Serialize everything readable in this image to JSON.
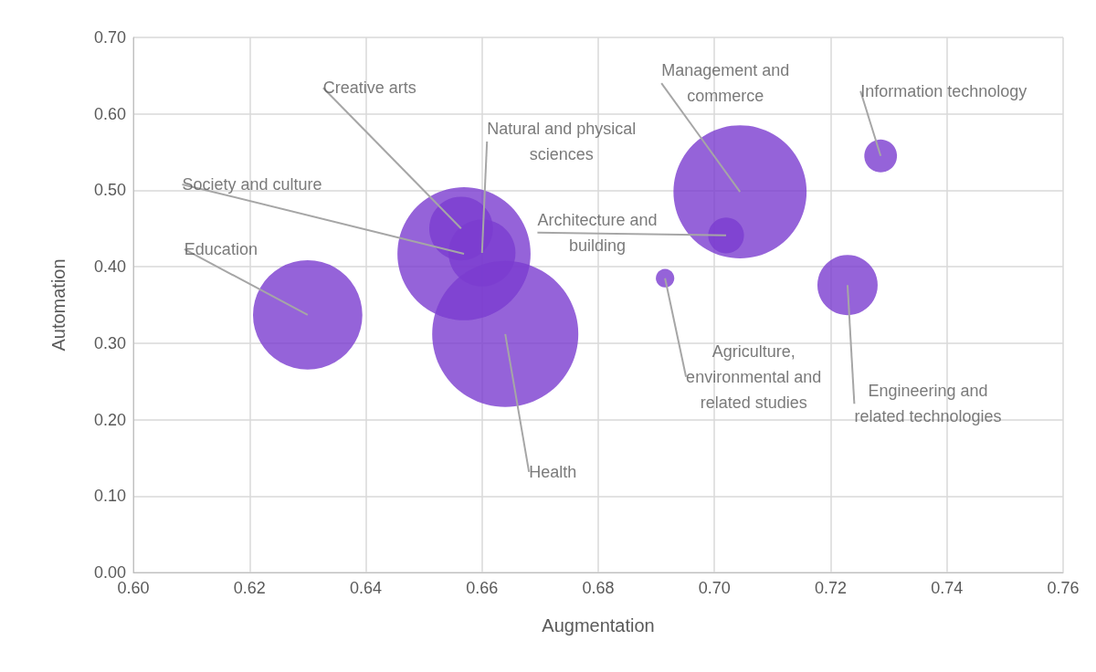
{
  "chart_data": {
    "type": "bubble",
    "xlabel": "Augmentation",
    "ylabel": "Automation",
    "x": [
      0.63,
      0.6569,
      0.6564,
      0.66,
      0.664,
      0.6915,
      0.702,
      0.7044,
      0.7286,
      0.7229
    ],
    "values": [
      0.337,
      0.417,
      0.45,
      0.418,
      0.312,
      0.385,
      0.441,
      0.498,
      0.545,
      0.376
    ],
    "sizes": [
      0.56,
      0.83,
      0.19,
      0.21,
      1,
      0.016,
      0.06,
      0.83,
      0.05,
      0.17
    ],
    "color": "#7a3ccf",
    "xlim": [
      0.6,
      0.76
    ],
    "xticks": [
      {
        "value": 0.6,
        "label": "0.60"
      },
      {
        "value": 0.62,
        "label": "0.62"
      },
      {
        "value": 0.64,
        "label": "0.64"
      },
      {
        "value": 0.66,
        "label": "0.66"
      },
      {
        "value": 0.68,
        "label": "0.68"
      },
      {
        "value": 0.7,
        "label": "0.70"
      },
      {
        "value": 0.72,
        "label": "0.72"
      },
      {
        "value": 0.74,
        "label": "0.74"
      },
      {
        "value": 0.76,
        "label": "0.76"
      }
    ],
    "ylim": [
      0,
      0.7
    ],
    "yticks": [
      {
        "value": 0,
        "label": "0.00"
      },
      {
        "value": 0.1,
        "label": "0.10"
      },
      {
        "value": 0.2,
        "label": "0.20"
      },
      {
        "value": 0.3,
        "label": "0.30"
      },
      {
        "value": 0.4,
        "label": "0.40"
      },
      {
        "value": 0.5,
        "label": "0.50"
      },
      {
        "value": 0.6,
        "label": "0.60"
      },
      {
        "value": 0.7,
        "label": "0.70"
      }
    ],
    "grid": true,
    "annotations": [
      {
        "text": "Education",
        "x": 0.63,
        "y": 0.337
      },
      {
        "text": "Society and culture",
        "x": 0.6569,
        "y": 0.417
      },
      {
        "text": "Creative arts",
        "x": 0.6564,
        "y": 0.45
      },
      {
        "text": "Natural and physical\nsciences",
        "x": 0.66,
        "y": 0.418
      },
      {
        "text": "Health",
        "x": 0.664,
        "y": 0.312
      },
      {
        "text": "Agriculture,\nenvironmental and\nrelated studies",
        "x": 0.6915,
        "y": 0.385
      },
      {
        "text": "Architecture and\nbuilding",
        "x": 0.702,
        "y": 0.441
      },
      {
        "text": "Management and\ncommerce",
        "x": 0.7044,
        "y": 0.498
      },
      {
        "text": "Information technology",
        "x": 0.7286,
        "y": 0.545
      },
      {
        "text": "Engineering and\nrelated technologies",
        "x": 0.7229,
        "y": 0.376
      }
    ]
  }
}
